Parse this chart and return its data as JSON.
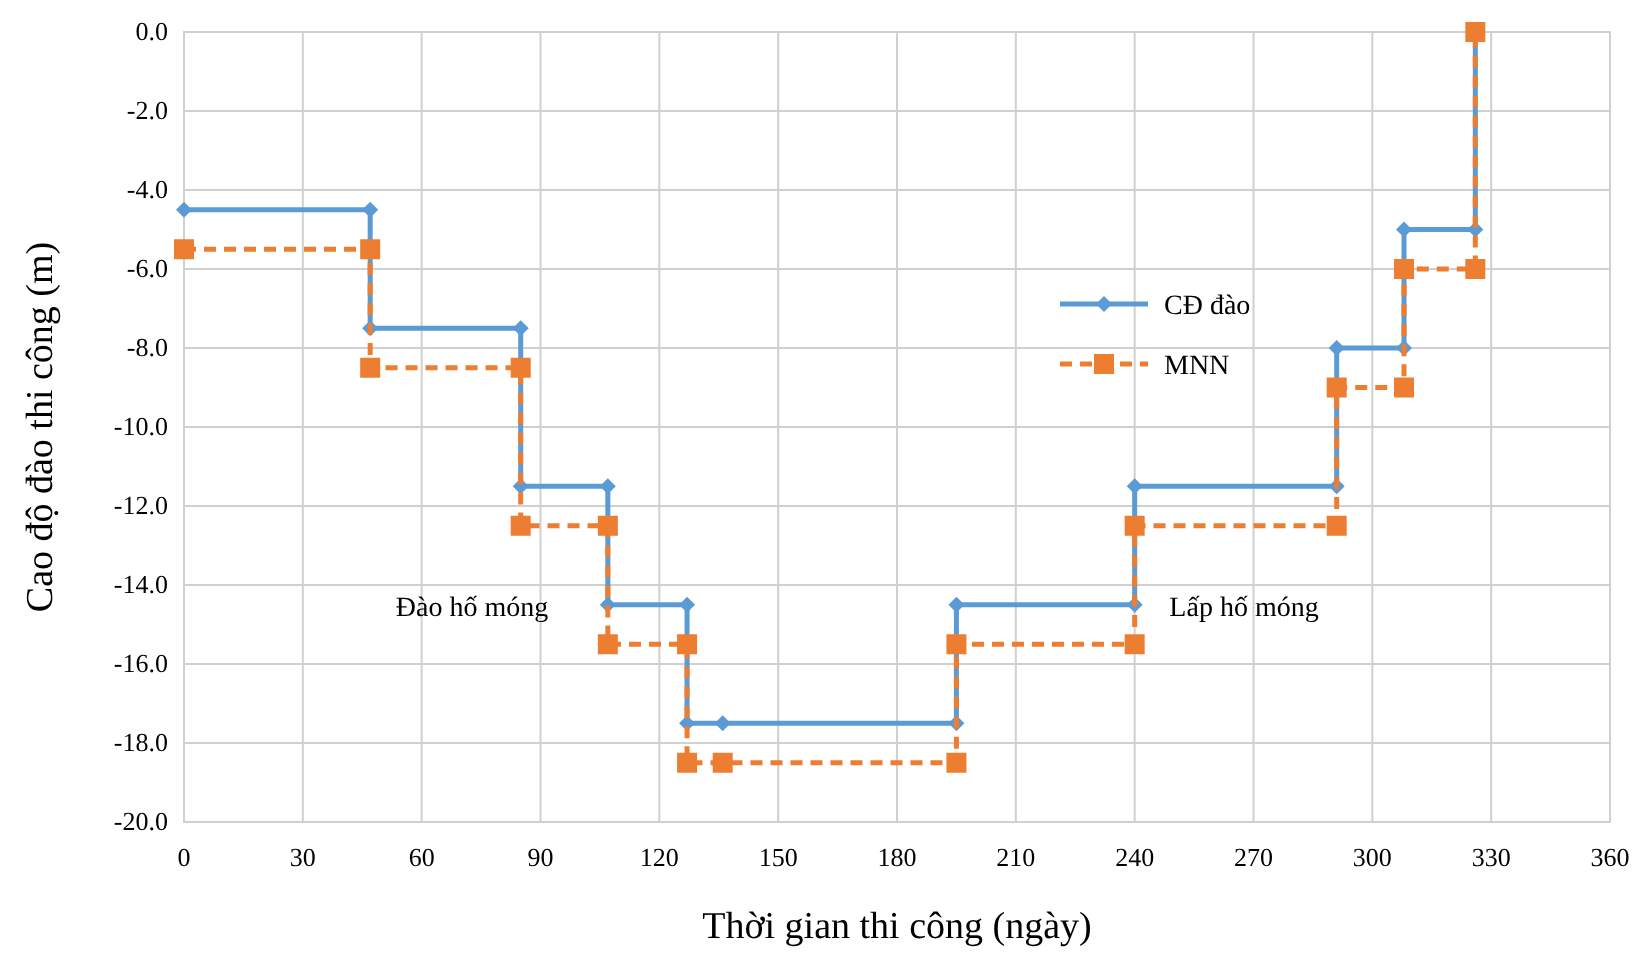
{
  "chart_data": {
    "type": "line",
    "xlabel": "Thời gian thi công (ngày)",
    "ylabel": "Cao độ đào thi công (m)",
    "xlim": [
      0,
      360
    ],
    "xticks": [
      0,
      30,
      60,
      90,
      120,
      150,
      180,
      210,
      240,
      270,
      300,
      330,
      360
    ],
    "ylim": [
      -20,
      0
    ],
    "yticks": [
      {
        "value": 0,
        "label": "0.0"
      },
      {
        "value": -2,
        "label": "-2.0"
      },
      {
        "value": -4,
        "label": "-4.0"
      },
      {
        "value": -6,
        "label": "-6.0"
      },
      {
        "value": -8,
        "label": "-8.0"
      },
      {
        "value": -10,
        "label": "-10.0"
      },
      {
        "value": -12,
        "label": "-12.0"
      },
      {
        "value": -14,
        "label": "-14.0"
      },
      {
        "value": -16,
        "label": "-16.0"
      },
      {
        "value": -18,
        "label": "-18.0"
      },
      {
        "value": -20,
        "label": "-20.0"
      }
    ],
    "grid": true,
    "legend": "right",
    "series": [
      {
        "name": "CĐ đào",
        "color": "#5b9bd5",
        "marker": "diamond",
        "line_style": "solid",
        "x": [
          0,
          47,
          47,
          85,
          85,
          107,
          107,
          127,
          127,
          136,
          195,
          195,
          240,
          240,
          291,
          291,
          308,
          308,
          326,
          326
        ],
        "values": [
          -4.5,
          -4.5,
          -7.5,
          -7.5,
          -11.5,
          -11.5,
          -14.5,
          -14.5,
          -17.5,
          -17.5,
          -17.5,
          -14.5,
          -14.5,
          -11.5,
          -11.5,
          -8,
          -8,
          -5,
          -5,
          0
        ]
      },
      {
        "name": "MNN",
        "color": "#ed7d31",
        "marker": "square",
        "line_style": "dashed",
        "x": [
          0,
          47,
          47,
          85,
          85,
          107,
          107,
          127,
          127,
          136,
          195,
          195,
          240,
          240,
          291,
          291,
          308,
          308,
          326,
          326
        ],
        "values": [
          -5.5,
          -5.5,
          -8.5,
          -8.5,
          -12.5,
          -12.5,
          -15.5,
          -15.5,
          -18.5,
          -18.5,
          -18.5,
          -15.5,
          -15.5,
          -12.5,
          -12.5,
          -9,
          -9,
          -6,
          -6,
          0
        ]
      }
    ],
    "annotations": [
      "Đào hố móng",
      "Lấp hố móng"
    ]
  }
}
